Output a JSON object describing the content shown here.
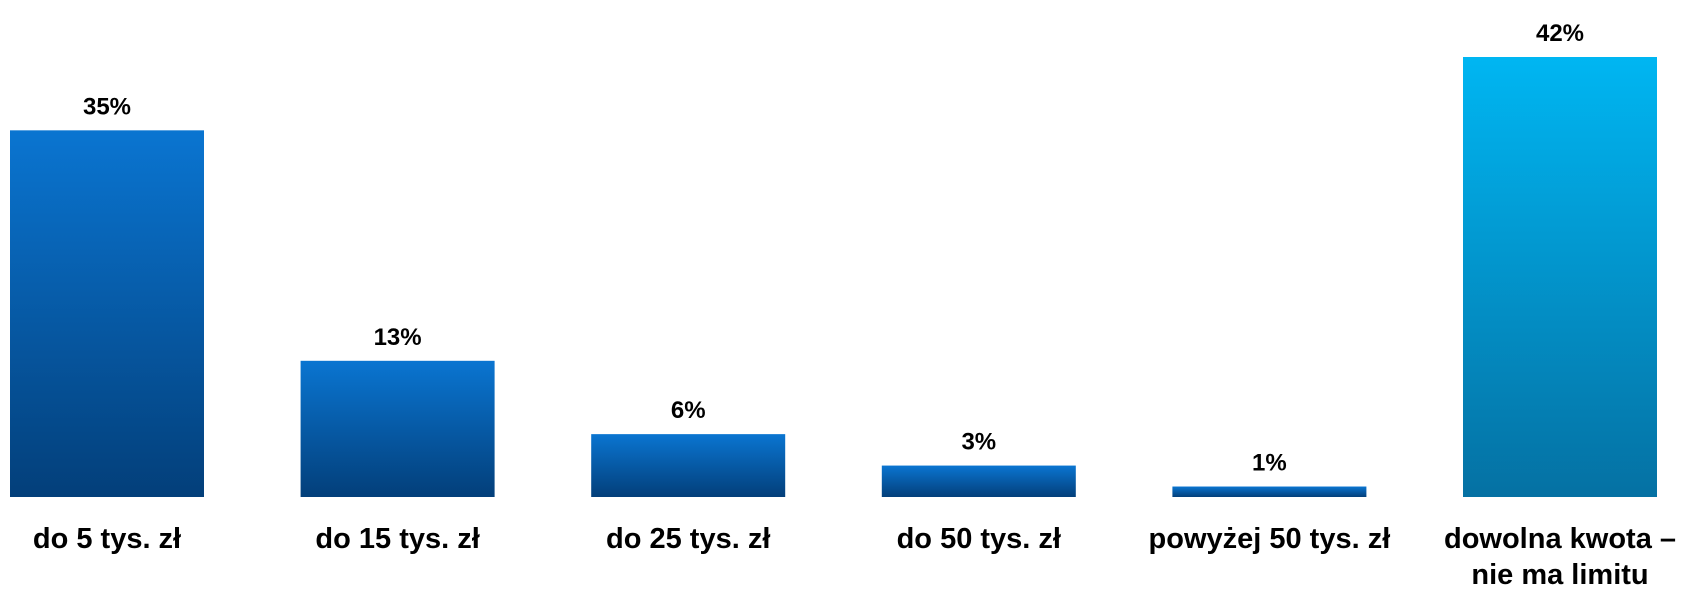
{
  "chart_data": {
    "type": "bar",
    "title": "",
    "xlabel": "",
    "ylabel": "",
    "ylim": [
      0,
      42
    ],
    "grid": false,
    "categories": [
      "do 5 tys. zł",
      "do 15 tys. zł",
      "do 25 tys. zł",
      "do 50 tys. zł",
      "powyżej 50 tys. zł",
      "dowolna kwota – nie ma limitu"
    ],
    "values": [
      35,
      13,
      6,
      3,
      1,
      42
    ],
    "value_labels": [
      "35%",
      "13%",
      "6%",
      "3%",
      "1%",
      "42%"
    ],
    "bar_styles": [
      "blue",
      "blue",
      "blue",
      "blue",
      "blue",
      "cyan"
    ],
    "colors": {
      "blue_top": "#0a75d1",
      "blue_bottom": "#033f7a",
      "cyan_top": "#00b6f2",
      "cyan_bottom": "#0571a3",
      "text": "#000000"
    }
  }
}
